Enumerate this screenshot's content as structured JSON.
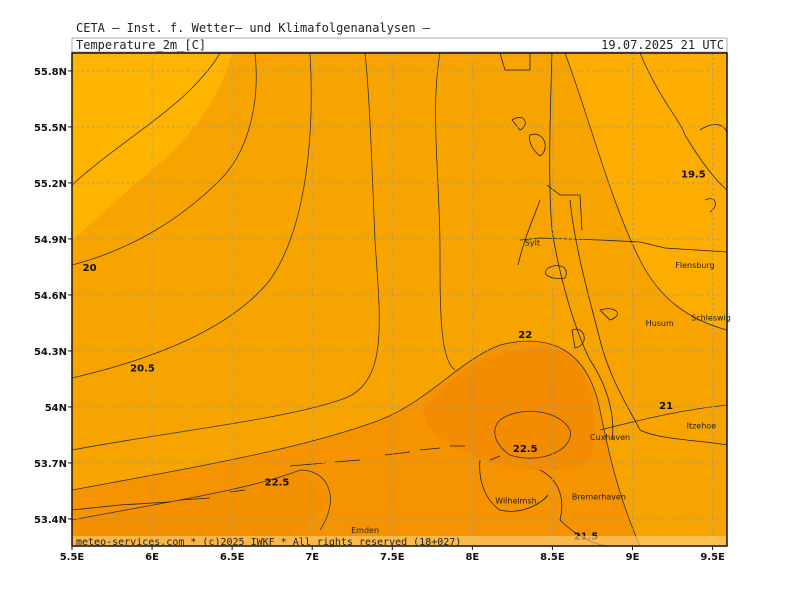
{
  "header": {
    "title": "CETA — Inst. f. Wetter— und Klimafolgenanalysen —",
    "field": "Temperature_2m_[C]",
    "time": "19.07.2025 21 UTC"
  },
  "footer": "meteo-services.com * (c)2025 IWKF * All rights reserved (18+027)",
  "map": {
    "lonlim": [
      5.5,
      9.59
    ],
    "latlim": [
      53.255,
      55.896
    ],
    "grid": true,
    "xticks": [
      {
        "value": 5.5,
        "label": "5.5E"
      },
      {
        "value": 6,
        "label": "6E"
      },
      {
        "value": 6.5,
        "label": "6.5E"
      },
      {
        "value": 7,
        "label": "7E"
      },
      {
        "value": 7.5,
        "label": "7.5E"
      },
      {
        "value": 8,
        "label": "8E"
      },
      {
        "value": 8.5,
        "label": "8.5E"
      },
      {
        "value": 9,
        "label": "9E"
      },
      {
        "value": 9.5,
        "label": "9.5E"
      }
    ],
    "yticks": [
      {
        "value": 53.4,
        "label": "53.4N"
      },
      {
        "value": 53.7,
        "label": "53.7N"
      },
      {
        "value": 54,
        "label": "54N"
      },
      {
        "value": 54.3,
        "label": "54.3N"
      },
      {
        "value": 54.6,
        "label": "54.6N"
      },
      {
        "value": 54.9,
        "label": "54.9N"
      },
      {
        "value": 55.2,
        "label": "55.2N"
      },
      {
        "value": 55.5,
        "label": "55.5N"
      },
      {
        "value": 55.8,
        "label": "55.8N"
      }
    ],
    "contour_labels": [
      {
        "value": 20,
        "lon": 5.61,
        "lat": 54.75
      },
      {
        "value": 20.5,
        "lon": 5.94,
        "lat": 54.21
      },
      {
        "value": 22,
        "lon": 8.33,
        "lat": 54.39
      },
      {
        "value": 22.5,
        "lon": 8.33,
        "lat": 53.78
      },
      {
        "value": 22.5,
        "lon": 6.78,
        "lat": 53.6
      },
      {
        "value": 21,
        "lon": 9.21,
        "lat": 54.01
      },
      {
        "value": 19.5,
        "lon": 9.38,
        "lat": 55.25
      },
      {
        "value": 21.5,
        "lon": 8.71,
        "lat": 53.31
      }
    ],
    "places": [
      {
        "name": "Sylt",
        "lon": 8.375,
        "lat": 54.88
      },
      {
        "name": "Flensburg",
        "lon": 9.39,
        "lat": 54.76
      },
      {
        "name": "Schleswig",
        "lon": 9.49,
        "lat": 54.48
      },
      {
        "name": "Husum",
        "lon": 9.17,
        "lat": 54.45
      },
      {
        "name": "Itzehoe",
        "lon": 9.43,
        "lat": 53.9
      },
      {
        "name": "Cuxhaven",
        "lon": 8.86,
        "lat": 53.84
      },
      {
        "name": "Bremerhaven",
        "lon": 8.79,
        "lat": 53.52
      },
      {
        "name": "Wilhelmsh.",
        "lon": 8.28,
        "lat": 53.5
      },
      {
        "name": "Emden",
        "lon": 7.33,
        "lat": 53.34
      }
    ]
  }
}
